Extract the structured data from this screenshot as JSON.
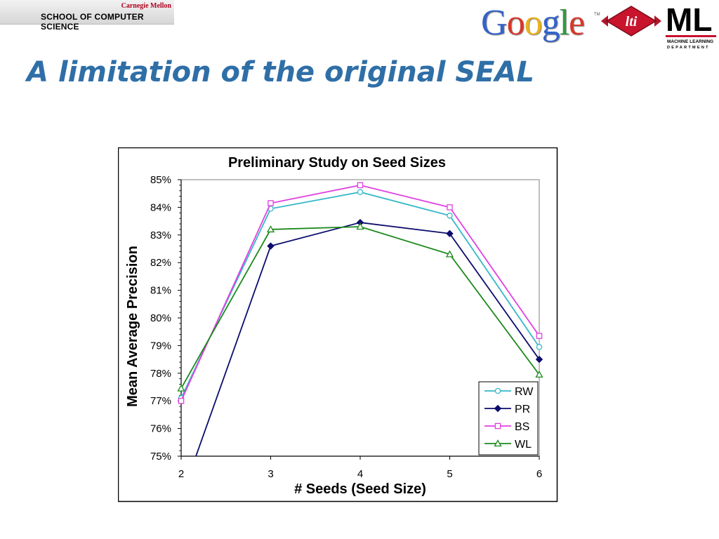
{
  "header": {
    "university": "Carnegie Mellon",
    "school": "SCHOOL OF COMPUTER SCIENCE",
    "logos": [
      "Google",
      "lti",
      "ML"
    ],
    "ml_dept": [
      "MACHINE LEARNING",
      "DEPARTMENT"
    ]
  },
  "slide": {
    "title": "A limitation of the original SEAL"
  },
  "colors": {
    "title": "#2f6fa7",
    "RW": "#35b8c8",
    "PR": "#0c0c6e",
    "BS": "#e040e0",
    "WL": "#1b8a1b"
  },
  "chart_data": {
    "type": "line",
    "title": "Preliminary Study on Seed Sizes",
    "xlabel": "# Seeds (Seed Size)",
    "ylabel": "Mean Average Precision",
    "x": [
      2,
      3,
      4,
      5,
      6
    ],
    "xlim": [
      2,
      6
    ],
    "ylim": [
      75,
      85
    ],
    "y_ticks": [
      "75%",
      "76%",
      "77%",
      "78%",
      "79%",
      "80%",
      "81%",
      "82%",
      "83%",
      "84%",
      "85%"
    ],
    "x_ticks": [
      "2",
      "3",
      "4",
      "5",
      "6"
    ],
    "grid": false,
    "legend": "bottom-right",
    "series": [
      {
        "name": "RW",
        "marker": "circle",
        "values": [
          77.1,
          83.95,
          84.55,
          83.7,
          78.95
        ]
      },
      {
        "name": "PR",
        "marker": "diamond",
        "values": [
          73.5,
          82.6,
          83.45,
          83.05,
          78.5
        ]
      },
      {
        "name": "BS",
        "marker": "square",
        "values": [
          77.0,
          84.15,
          84.8,
          84.0,
          79.35
        ]
      },
      {
        "name": "WL",
        "marker": "triangle",
        "values": [
          77.45,
          83.2,
          83.3,
          82.3,
          77.95
        ]
      }
    ]
  }
}
